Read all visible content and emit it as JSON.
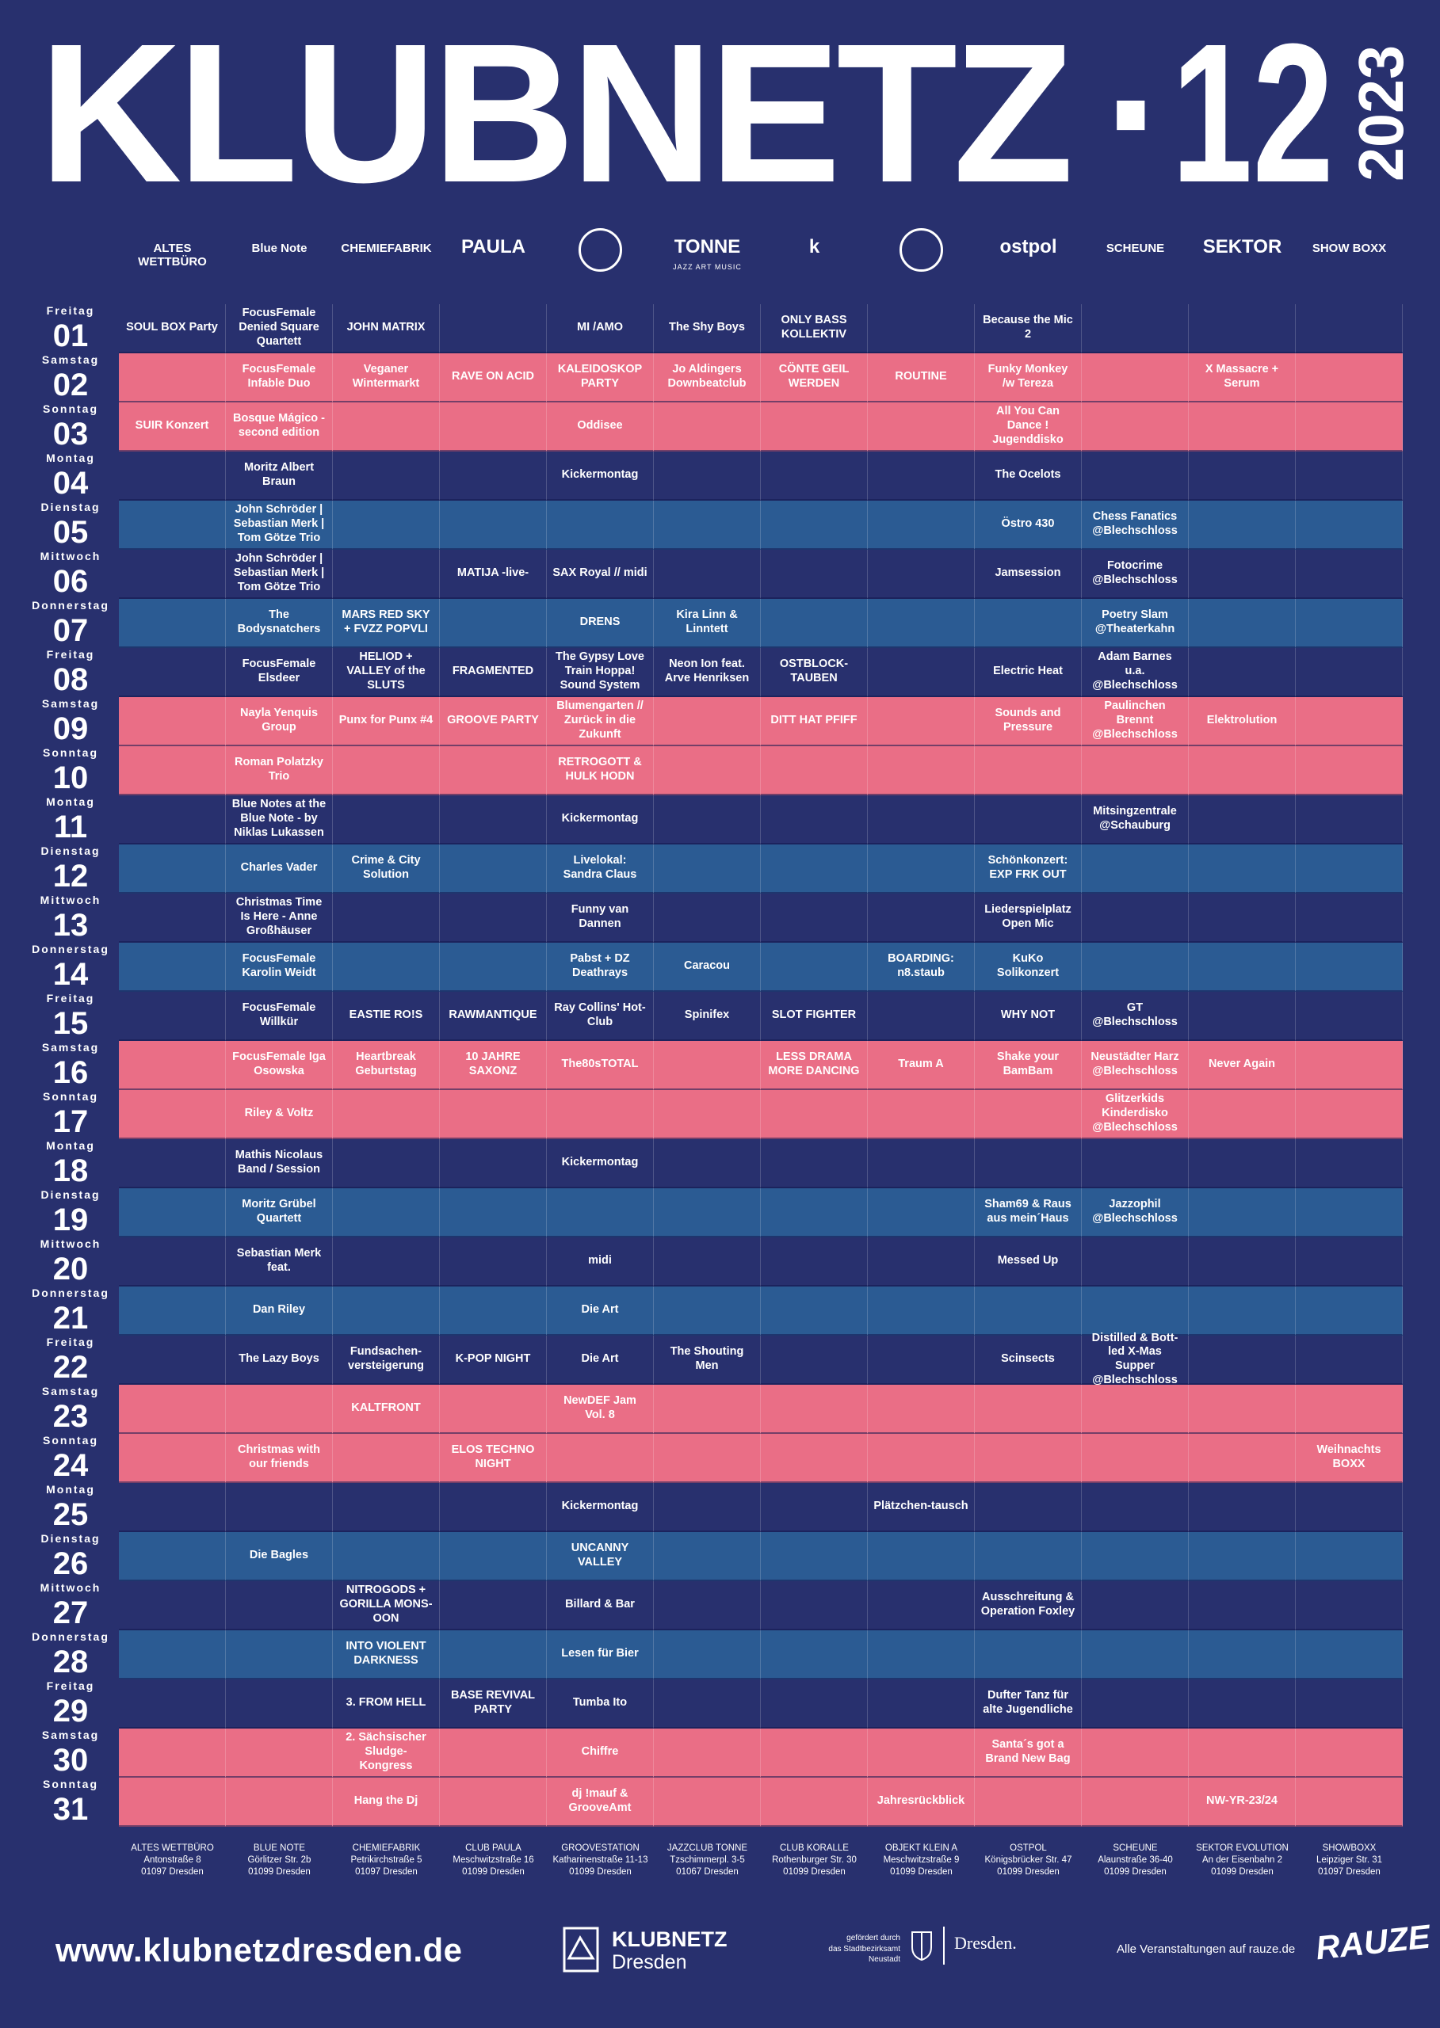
{
  "header": {
    "title": "KLUBNETZ",
    "separator": "·",
    "issue": "12",
    "year": "2023"
  },
  "logos": [
    {
      "text": "ALTES WETTBÜRO"
    },
    {
      "text": "Blue Note"
    },
    {
      "text": "CHEMIEFABRIK"
    },
    {
      "text": "PAULA"
    },
    {
      "text": null
    },
    {
      "text": "TONNE",
      "subtext": "JAZZ ART MUSIC"
    },
    {
      "text": "k"
    },
    {
      "text": null
    },
    {
      "text": "ostpol"
    },
    {
      "text": "SCHEUNE"
    },
    {
      "text": "SEKTOR"
    },
    {
      "text": "SHOW BOXX"
    }
  ],
  "colors": {
    "background": "#28306e",
    "text": "#ffffff"
  },
  "rows": [
    {
      "weekday": "Freitag",
      "day": "01",
      "color": "#28306e",
      "events": [
        "SOUL BOX Party",
        "FocusFemale Denied Square Quartett",
        "JOHN MATRIX",
        null,
        "MI /AMO",
        "The Shy Boys",
        "ONLY BASS KOLLEKTIV",
        null,
        "Because the Mic 2",
        null,
        null,
        null
      ]
    },
    {
      "weekday": "Samstag",
      "day": "02",
      "color": "#ea6e86",
      "events": [
        null,
        "FocusFemale Infable Duo",
        "Veganer Wintermarkt",
        "RAVE ON ACID",
        "KALEIDOSKOP PARTY",
        "Jo Aldingers Downbeatclub",
        "CÖNTE GEIL WERDEN",
        "ROUTINE",
        "Funky Monkey /w Tereza",
        null,
        "X Massacre + Serum",
        null
      ]
    },
    {
      "weekday": "Sonntag",
      "day": "03",
      "color": "#ea6e86",
      "events": [
        "SUIR Konzert",
        "Bosque Mágico - second edition",
        null,
        null,
        "Oddisee",
        null,
        null,
        null,
        "All You Can Dance ! Jugenddisko",
        null,
        null,
        null
      ]
    },
    {
      "weekday": "Montag",
      "day": "04",
      "color": "#28306e",
      "events": [
        null,
        "Moritz Albert Braun",
        null,
        null,
        "Kickermontag",
        null,
        null,
        null,
        "The Ocelots",
        null,
        null,
        null
      ]
    },
    {
      "weekday": "Dienstag",
      "day": "05",
      "color": "#2b5b93",
      "events": [
        null,
        "John Schröder | Sebastian Merk | Tom Götze Trio",
        null,
        null,
        null,
        null,
        null,
        null,
        "Östro 430",
        "Chess Fanatics @Blechschloss",
        null,
        null
      ]
    },
    {
      "weekday": "Mittwoch",
      "day": "06",
      "color": "#28306e",
      "events": [
        null,
        "John Schröder | Sebastian Merk | Tom Götze Trio",
        null,
        "MATIJA -live-",
        "SAX Royal // midi",
        null,
        null,
        null,
        "Jamsession",
        "Fotocrime @Blechschloss",
        null,
        null
      ]
    },
    {
      "weekday": "Donnerstag",
      "day": "07",
      "color": "#2b5b93",
      "events": [
        null,
        "The Bodysnatchers",
        "MARS RED SKY + FVZZ POPVLI",
        null,
        "DRENS",
        "Kira Linn & Linntett",
        null,
        null,
        null,
        "Poetry Slam @Theaterkahn",
        null,
        null
      ]
    },
    {
      "weekday": "Freitag",
      "day": "08",
      "color": "#28306e",
      "events": [
        null,
        "FocusFemale Elsdeer",
        "HELIOD + VALLEY of the SLUTS",
        "FRAGMENTED",
        "The Gypsy Love Train Hoppa! Sound System",
        "Neon Ion feat. Arve Henriksen",
        "OSTBLOCK-TAUBEN",
        null,
        "Electric Heat",
        "Adam Barnes u.a. @Blechschloss",
        null,
        null
      ]
    },
    {
      "weekday": "Samstag",
      "day": "09",
      "color": "#ea6e86",
      "events": [
        null,
        "Nayla Yenquis Group",
        "Punx for Punx #4",
        "GROOVE PARTY",
        "Blumengarten // Zurück in die Zukunft",
        null,
        "DITT HAT PFIFF",
        null,
        "Sounds and Pressure",
        "Paulinchen Brennt @Blechschloss",
        "Elektrolution",
        null
      ]
    },
    {
      "weekday": "Sonntag",
      "day": "10",
      "color": "#ea6e86",
      "events": [
        null,
        "Roman Polatzky Trio",
        null,
        null,
        "RETROGOTT & HULK HODN",
        null,
        null,
        null,
        null,
        null,
        null,
        null
      ]
    },
    {
      "weekday": "Montag",
      "day": "11",
      "color": "#28306e",
      "events": [
        null,
        "Blue Notes at the Blue Note - by Niklas Lukassen",
        null,
        null,
        "Kickermontag",
        null,
        null,
        null,
        null,
        "Mitsingzentrale @Schauburg",
        null,
        null
      ]
    },
    {
      "weekday": "Dienstag",
      "day": "12",
      "color": "#2b5b93",
      "events": [
        null,
        "Charles Vader",
        "Crime & City Solution",
        null,
        "Livelokal: Sandra Claus",
        null,
        null,
        null,
        "Schönkonzert: EXP FRK OUT",
        null,
        null,
        null
      ]
    },
    {
      "weekday": "Mittwoch",
      "day": "13",
      "color": "#28306e",
      "events": [
        null,
        "Christmas Time Is Here - Anne Großhäuser",
        null,
        null,
        "Funny van Dannen",
        null,
        null,
        null,
        "Liederspielplatz Open Mic",
        null,
        null,
        null
      ]
    },
    {
      "weekday": "Donnerstag",
      "day": "14",
      "color": "#2b5b93",
      "events": [
        null,
        "FocusFemale Karolin Weidt",
        null,
        null,
        "Pabst + DZ Deathrays",
        "Caracou",
        null,
        "BOARDING: n8.staub",
        "KuKo Solikonzert",
        null,
        null,
        null
      ]
    },
    {
      "weekday": "Freitag",
      "day": "15",
      "color": "#28306e",
      "events": [
        null,
        "FocusFemale Willkür",
        "EASTIE RO!S",
        "RAWMANTIQUE",
        "Ray Collins' Hot-Club",
        "Spinifex",
        "SLOT FIGHTER",
        null,
        "WHY NOT",
        "GT @Blechschloss",
        null,
        null
      ]
    },
    {
      "weekday": "Samstag",
      "day": "16",
      "color": "#ea6e86",
      "events": [
        null,
        "FocusFemale Iga Osowska",
        "Heartbreak Geburtstag",
        "10 JAHRE SAXONZ",
        "The80sTOTAL",
        null,
        "LESS DRAMA MORE DANCING",
        "Traum A",
        "Shake your BamBam",
        "Neustädter Harz @Blechschloss",
        "Never Again",
        null
      ]
    },
    {
      "weekday": "Sonntag",
      "day": "17",
      "color": "#ea6e86",
      "events": [
        null,
        "Riley & Voltz",
        null,
        null,
        null,
        null,
        null,
        null,
        null,
        "Glitzerkids Kinderdisko @Blechschloss",
        null,
        null
      ]
    },
    {
      "weekday": "Montag",
      "day": "18",
      "color": "#28306e",
      "events": [
        null,
        "Mathis Nicolaus Band / Session",
        null,
        null,
        "Kickermontag",
        null,
        null,
        null,
        null,
        null,
        null,
        null
      ]
    },
    {
      "weekday": "Dienstag",
      "day": "19",
      "color": "#2b5b93",
      "events": [
        null,
        "Moritz Grübel Quartett",
        null,
        null,
        null,
        null,
        null,
        null,
        "Sham69 & Raus aus mein´Haus",
        "Jazzophil @Blechschloss",
        null,
        null
      ]
    },
    {
      "weekday": "Mittwoch",
      "day": "20",
      "color": "#28306e",
      "events": [
        null,
        "Sebastian Merk feat.",
        null,
        null,
        "midi",
        null,
        null,
        null,
        "Messed Up",
        null,
        null,
        null
      ]
    },
    {
      "weekday": "Donnerstag",
      "day": "21",
      "color": "#2b5b93",
      "events": [
        null,
        "Dan Riley",
        null,
        null,
        "Die Art",
        null,
        null,
        null,
        null,
        null,
        null,
        null
      ]
    },
    {
      "weekday": "Freitag",
      "day": "22",
      "color": "#28306e",
      "events": [
        null,
        "The Lazy Boys",
        "Fundsachen-versteigerung",
        "K-POP NIGHT",
        "Die Art",
        "The Shouting Men",
        null,
        null,
        "Scinsects",
        "Distilled & Bott-led X-Mas Supper @Blechschloss",
        null,
        null
      ]
    },
    {
      "weekday": "Samstag",
      "day": "23",
      "color": "#ea6e86",
      "events": [
        null,
        null,
        "KALTFRONT",
        null,
        "NewDEF Jam Vol. 8",
        null,
        null,
        null,
        null,
        null,
        null,
        null
      ]
    },
    {
      "weekday": "Sonntag",
      "day": "24",
      "color": "#ea6e86",
      "events": [
        null,
        "Christmas with our friends",
        null,
        "ELOS TECHNO NIGHT",
        null,
        null,
        null,
        null,
        null,
        null,
        null,
        "Weihnachts BOXX"
      ]
    },
    {
      "weekday": "Montag",
      "day": "25",
      "color": "#28306e",
      "events": [
        null,
        null,
        null,
        null,
        "Kickermontag",
        null,
        null,
        "Plätzchen-tausch",
        null,
        null,
        null,
        null
      ]
    },
    {
      "weekday": "Dienstag",
      "day": "26",
      "color": "#2b5b93",
      "events": [
        null,
        "Die Bagles",
        null,
        null,
        "UNCANNY VALLEY",
        null,
        null,
        null,
        null,
        null,
        null,
        null
      ]
    },
    {
      "weekday": "Mittwoch",
      "day": "27",
      "color": "#28306e",
      "events": [
        null,
        null,
        "NITROGODS + GORILLA MONS-OON",
        null,
        "Billard & Bar",
        null,
        null,
        null,
        "Ausschreitung & Operation Foxley",
        null,
        null,
        null
      ]
    },
    {
      "weekday": "Donnerstag",
      "day": "28",
      "color": "#2b5b93",
      "events": [
        null,
        null,
        "INTO VIOLENT DARKNESS",
        null,
        "Lesen für Bier",
        null,
        null,
        null,
        null,
        null,
        null,
        null
      ]
    },
    {
      "weekday": "Freitag",
      "day": "29",
      "color": "#28306e",
      "events": [
        null,
        null,
        "3. FROM HELL",
        "BASE REVIVAL PARTY",
        "Tumba Ito",
        null,
        null,
        null,
        "Dufter Tanz für alte Jugendliche",
        null,
        null,
        null
      ]
    },
    {
      "weekday": "Samstag",
      "day": "30",
      "color": "#ea6e86",
      "events": [
        null,
        null,
        "2. Sächsischer Sludge-Kongress",
        null,
        "Chiffre",
        null,
        null,
        null,
        "Santa´s got a Brand New Bag",
        null,
        null,
        null
      ]
    },
    {
      "weekday": "Sonntag",
      "day": "31",
      "color": "#ea6e86",
      "events": [
        null,
        null,
        "Hang the Dj",
        null,
        "dj !mauf & GrooveAmt",
        null,
        null,
        "Jahresrückblick",
        null,
        null,
        "NW-YR-23/24",
        null
      ]
    }
  ],
  "venues": [
    {
      "name": "ALTES WETTBÜRO",
      "street": "Antonstraße 8",
      "city": "01097 Dresden"
    },
    {
      "name": "BLUE NOTE",
      "street": "Görlitzer Str. 2b",
      "city": "01099 Dresden"
    },
    {
      "name": "CHEMIEFABRIK",
      "street": "Petrikirchstraße 5",
      "city": "01097 Dresden"
    },
    {
      "name": "CLUB PAULA",
      "street": "Meschwitzstraße 16",
      "city": "01099 Dresden"
    },
    {
      "name": "GROOVESTATION",
      "street": "Katharinenstraße 11-13",
      "city": "01099 Dresden"
    },
    {
      "name": "JAZZCLUB TONNE",
      "street": "Tzschimmerpl. 3-5",
      "city": "01067 Dresden"
    },
    {
      "name": "CLUB KORALLE",
      "street": "Rothenburger Str. 30",
      "city": "01099 Dresden"
    },
    {
      "name": "OBJEKT KLEIN A",
      "street": "Meschwitzstraße 9",
      "city": "01099 Dresden"
    },
    {
      "name": "OSTPOL",
      "street": "Königsbrücker Str. 47",
      "city": "01099 Dresden"
    },
    {
      "name": "SCHEUNE",
      "street": "Alaunstraße 36-40",
      "city": "01099 Dresden"
    },
    {
      "name": "SEKTOR EVOLUTION",
      "street": "An der Eisenbahn 2",
      "city": "01099 Dresden"
    },
    {
      "name": "SHOWBOXX",
      "street": "Leipziger Str. 31",
      "city": "01097 Dresden"
    }
  ],
  "footer": {
    "url": "www.klubnetzdresden.de",
    "brand": {
      "name": "KLUBNETZ",
      "city": "Dresden"
    },
    "funding": [
      "gefördert durch",
      "das Stadtbezirksamt",
      "Neustadt"
    ],
    "city_logo": "Dresden.",
    "note": "Alle Veranstaltungen auf rauze.de",
    "partner": "RAUZE"
  }
}
